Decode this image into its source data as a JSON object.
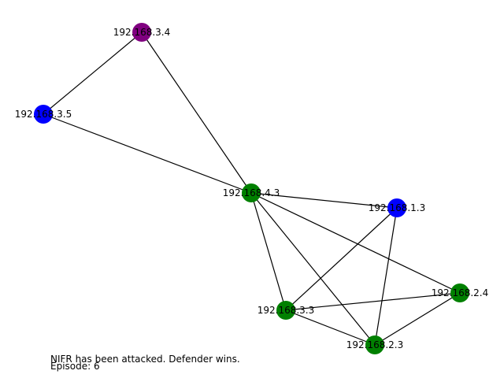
{
  "graph": {
    "colors": {
      "compromised": "#800080",
      "blue": "#0000ff",
      "green": "#008000",
      "edge": "#000000"
    },
    "nodes": [
      {
        "id": "192.168.3.4",
        "color": "compromised"
      },
      {
        "id": "192.168.3.5",
        "color": "blue"
      },
      {
        "id": "192.168.4.3",
        "color": "green"
      },
      {
        "id": "192.168.1.3",
        "color": "blue"
      },
      {
        "id": "192.168.2.4",
        "color": "green"
      },
      {
        "id": "192.168.3.3",
        "color": "green"
      },
      {
        "id": "192.168.2.3",
        "color": "green"
      }
    ],
    "edges": [
      [
        "192.168.3.4",
        "192.168.3.5"
      ],
      [
        "192.168.3.4",
        "192.168.4.3"
      ],
      [
        "192.168.3.5",
        "192.168.4.3"
      ],
      [
        "192.168.4.3",
        "192.168.1.3"
      ],
      [
        "192.168.4.3",
        "192.168.3.3"
      ],
      [
        "192.168.4.3",
        "192.168.2.3"
      ],
      [
        "192.168.4.3",
        "192.168.2.4"
      ],
      [
        "192.168.1.3",
        "192.168.3.3"
      ],
      [
        "192.168.1.3",
        "192.168.2.3"
      ],
      [
        "192.168.3.3",
        "192.168.2.4"
      ],
      [
        "192.168.3.3",
        "192.168.2.3"
      ],
      [
        "192.168.2.3",
        "192.168.2.4"
      ]
    ]
  },
  "status": {
    "message": "NIFR has been attacked. Defender wins.",
    "episode": "Episode: 6"
  }
}
